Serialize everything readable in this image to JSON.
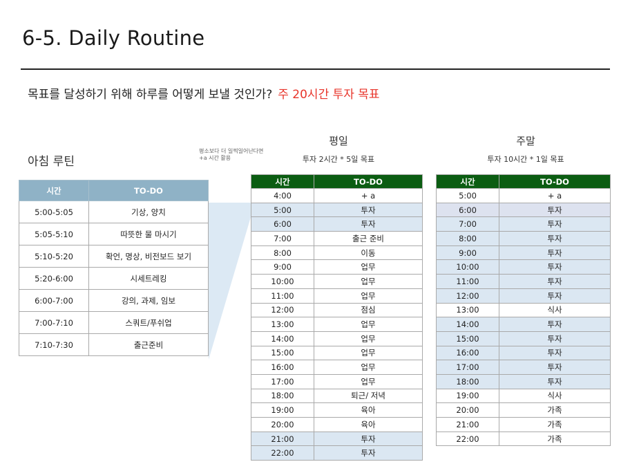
{
  "title": "6-5. Daily Routine",
  "subtitle": {
    "text": "목표를 달성하기 위해 하루를 어떻게 보낼 것인가?",
    "highlight": "주 20시간 투자 목표",
    "highlight_color": "#e8342a"
  },
  "morning": {
    "title": "아침 루틴",
    "headers": [
      "시간",
      "TO-DO"
    ],
    "rows": [
      [
        "5:00-5:05",
        "기상, 양치"
      ],
      [
        "5:05-5:10",
        "따뜻한 물 마시기"
      ],
      [
        "5:10-5:20",
        "확언, 명상, 비전보드 보기"
      ],
      [
        "5:20-6:00",
        "시세트레킹"
      ],
      [
        "6:00-7:00",
        "강의, 과제, 임보"
      ],
      [
        "7:00-7:10",
        "스쿼트/푸쉬업"
      ],
      [
        "7:10-7:30",
        "출근준비"
      ]
    ]
  },
  "note": {
    "line1": "평소보다 더 일찍일어난다면",
    "line2": "+a 시간 활용"
  },
  "weekday": {
    "title": "평일",
    "goal": "투자 2시간 * 5일 목표",
    "headers": [
      "시간",
      "TO-DO"
    ],
    "rows": [
      [
        "4:00",
        "+ a"
      ],
      [
        "5:00",
        "투자"
      ],
      [
        "6:00",
        "투자"
      ],
      [
        "7:00",
        "출근 준비"
      ],
      [
        "8:00",
        "이동"
      ],
      [
        "9:00",
        "업무"
      ],
      [
        "10:00",
        "업무"
      ],
      [
        "11:00",
        "업무"
      ],
      [
        "12:00",
        "점심"
      ],
      [
        "13:00",
        "업무"
      ],
      [
        "14:00",
        "업무"
      ],
      [
        "15:00",
        "업무"
      ],
      [
        "16:00",
        "업무"
      ],
      [
        "17:00",
        "업무"
      ],
      [
        "18:00",
        "퇴근/ 저녁"
      ],
      [
        "19:00",
        "육아"
      ],
      [
        "20:00",
        "육아"
      ],
      [
        "21:00",
        "투자"
      ],
      [
        "22:00",
        "투자"
      ]
    ],
    "highlight_rows": [
      1,
      2,
      17,
      18
    ]
  },
  "weekend": {
    "title": "주말",
    "goal": "투자 10시간 * 1일 목표",
    "headers": [
      "시간",
      "TO-DO"
    ],
    "rows": [
      [
        "5:00",
        "+ a"
      ],
      [
        "6:00",
        "투자"
      ],
      [
        "7:00",
        "투자"
      ],
      [
        "8:00",
        "투자"
      ],
      [
        "9:00",
        "투자"
      ],
      [
        "10:00",
        "투자"
      ],
      [
        "11:00",
        "투자"
      ],
      [
        "12:00",
        "투자"
      ],
      [
        "13:00",
        "식사"
      ],
      [
        "14:00",
        "투자"
      ],
      [
        "15:00",
        "투자"
      ],
      [
        "16:00",
        "투자"
      ],
      [
        "17:00",
        "투자"
      ],
      [
        "18:00",
        "투자"
      ],
      [
        "19:00",
        "식사"
      ],
      [
        "20:00",
        "가족"
      ],
      [
        "21:00",
        "가족"
      ],
      [
        "22:00",
        "가족"
      ]
    ],
    "highlight_rows": [
      1,
      2,
      3,
      4,
      5,
      6,
      7,
      9,
      10,
      11,
      12,
      13
    ]
  },
  "colors": {
    "morning_header": "#8fb2c6",
    "table_header": "#0b5d12",
    "highlight": "#dbe7f2"
  }
}
